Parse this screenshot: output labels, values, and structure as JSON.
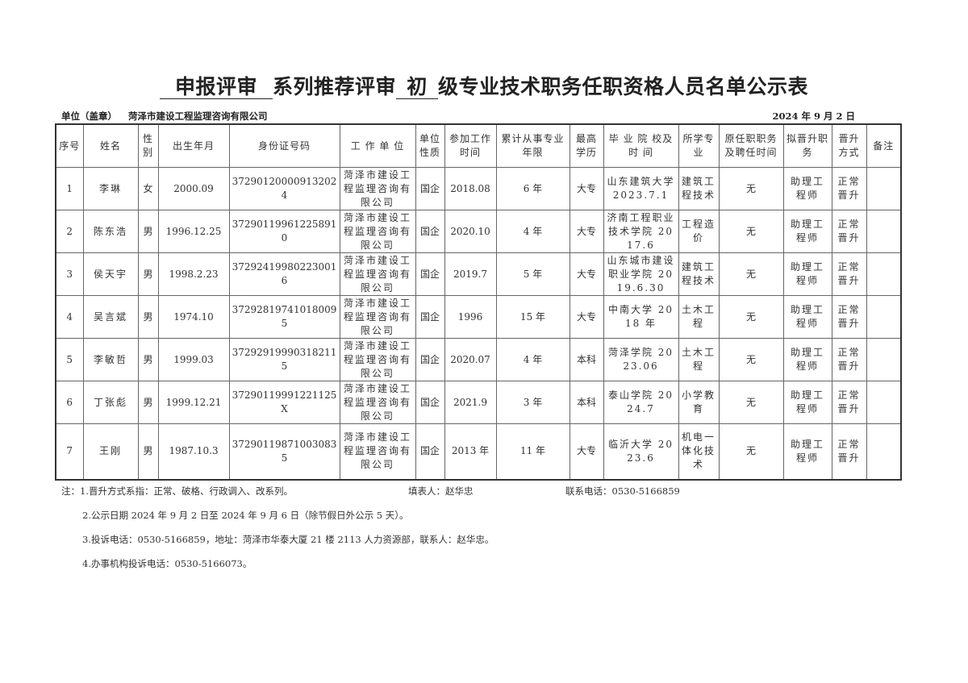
{
  "title": {
    "blank1": "申报评审",
    "mid": "系列推荐评审",
    "blank2": "初",
    "rest": "级专业技术职务任职资格人员名单公示表"
  },
  "unit_label": "单位（盖章）",
  "unit_name": "菏泽市建设工程监理咨询有限公司",
  "date": "2024 年  9 月  2 日",
  "headers": [
    "序号",
    "姓名",
    "性别",
    "出生年月",
    "身份证号码",
    "工 作 单 位",
    "单位性质",
    "参加工作时间",
    "累计从事专业年限",
    "最高学历",
    "毕 业 院 校及 时 间",
    "所学专业",
    "原任职职务及聘任时间",
    "拟晋升职务",
    "晋升方式",
    "备注"
  ],
  "rows": [
    {
      "no": "1",
      "name": "李琳",
      "sex": "女",
      "birth": "2000.09",
      "id": "372901200009132024",
      "unit": "菏泽市建设工程监理咨询有限公司",
      "type": "国企",
      "joined": "2018.08",
      "years": "6 年",
      "edu": "大专",
      "school": "山东建筑大学 2023.7.1",
      "major": "建筑工程技术",
      "orig": "无",
      "promote": "助理工程师",
      "method": "正常晋升",
      "note": ""
    },
    {
      "no": "2",
      "name": "陈东浩",
      "sex": "男",
      "birth": "1996.12.25",
      "id": "372901199612258910",
      "unit": "菏泽市建设工程监理咨询有限公司",
      "type": "国企",
      "joined": "2020.10",
      "years": "4 年",
      "edu": "大专",
      "school": "济南工程职业技术学院 2017.6",
      "major": "工程造价",
      "orig": "无",
      "promote": "助理工程师",
      "method": "正常晋升",
      "note": ""
    },
    {
      "no": "3",
      "name": "侯天宇",
      "sex": "男",
      "birth": "1998.2.23",
      "id": "372924199802230016",
      "unit": "菏泽市建设工程监理咨询有限公司",
      "type": "国企",
      "joined": "2019.7",
      "years": "5 年",
      "edu": "大专",
      "school": "山东城市建设职业学院 2019.6.30",
      "major": "建筑工程技术",
      "orig": "无",
      "promote": "助理工程师",
      "method": "正常晋升",
      "note": ""
    },
    {
      "no": "4",
      "name": "吴言斌",
      "sex": "男",
      "birth": "1974.10",
      "id": "372928197410180095",
      "unit": "菏泽市建设工程监理咨询有限公司",
      "type": "国企",
      "joined": "1996",
      "years": "15 年",
      "edu": "大专",
      "school": "中南大学 2018 年",
      "major": "土木工程",
      "orig": "无",
      "promote": "助理工程师",
      "method": "正常晋升",
      "note": ""
    },
    {
      "no": "5",
      "name": "李敏哲",
      "sex": "男",
      "birth": "1999.03",
      "id": "372929199903182115",
      "unit": "菏泽市建设工程监理咨询有限公司",
      "type": "国企",
      "joined": "2020.07",
      "years": "4 年",
      "edu": "本科",
      "school": "菏泽学院 2023.06",
      "major": "土木工程",
      "orig": "无",
      "promote": "助理工程师",
      "method": "正常晋升",
      "note": ""
    },
    {
      "no": "6",
      "name": "丁张彪",
      "sex": "男",
      "birth": "1999.12.21",
      "id": "37290119991221125X",
      "unit": "菏泽市建设工程监理咨询有限公司",
      "type": "国企",
      "joined": "2021.9",
      "years": "3 年",
      "edu": "本科",
      "school": "泰山学院 2024.7",
      "major": "小学教育",
      "orig": "无",
      "promote": "助理工程师",
      "method": "正常晋升",
      "note": ""
    },
    {
      "no": "7",
      "name": "王刚",
      "sex": "男",
      "birth": "1987.10.3",
      "id": "372901198710030835",
      "unit": "菏泽市建设工程监理咨询有限公司",
      "type": "国企",
      "joined": "2013 年",
      "years": "11 年",
      "edu": "大专",
      "school": "临沂大学 2023.6",
      "major": "机电一体化技术",
      "orig": "无",
      "promote": "助理工程师",
      "method": "正常晋升",
      "note": ""
    }
  ],
  "notes": {
    "n1": "注：1.晋升方式系指：正常、破格、行政调入、改系列。",
    "filler": "填表人：赵华忠",
    "phone": "联系电话：0530-5166859",
    "n2": "2.公示日期 2024 年 9 月 2 日至 2024 年 9 月 6 日（除节假日外公示 5 天）。",
    "n3": "3.投诉电话：0530-5166859，地址：菏泽市华泰大厦 21 楼 2113 人力资源部，联系人：赵华忠。",
    "n4": "4.办事机构投诉电话：0530-5166073。"
  }
}
